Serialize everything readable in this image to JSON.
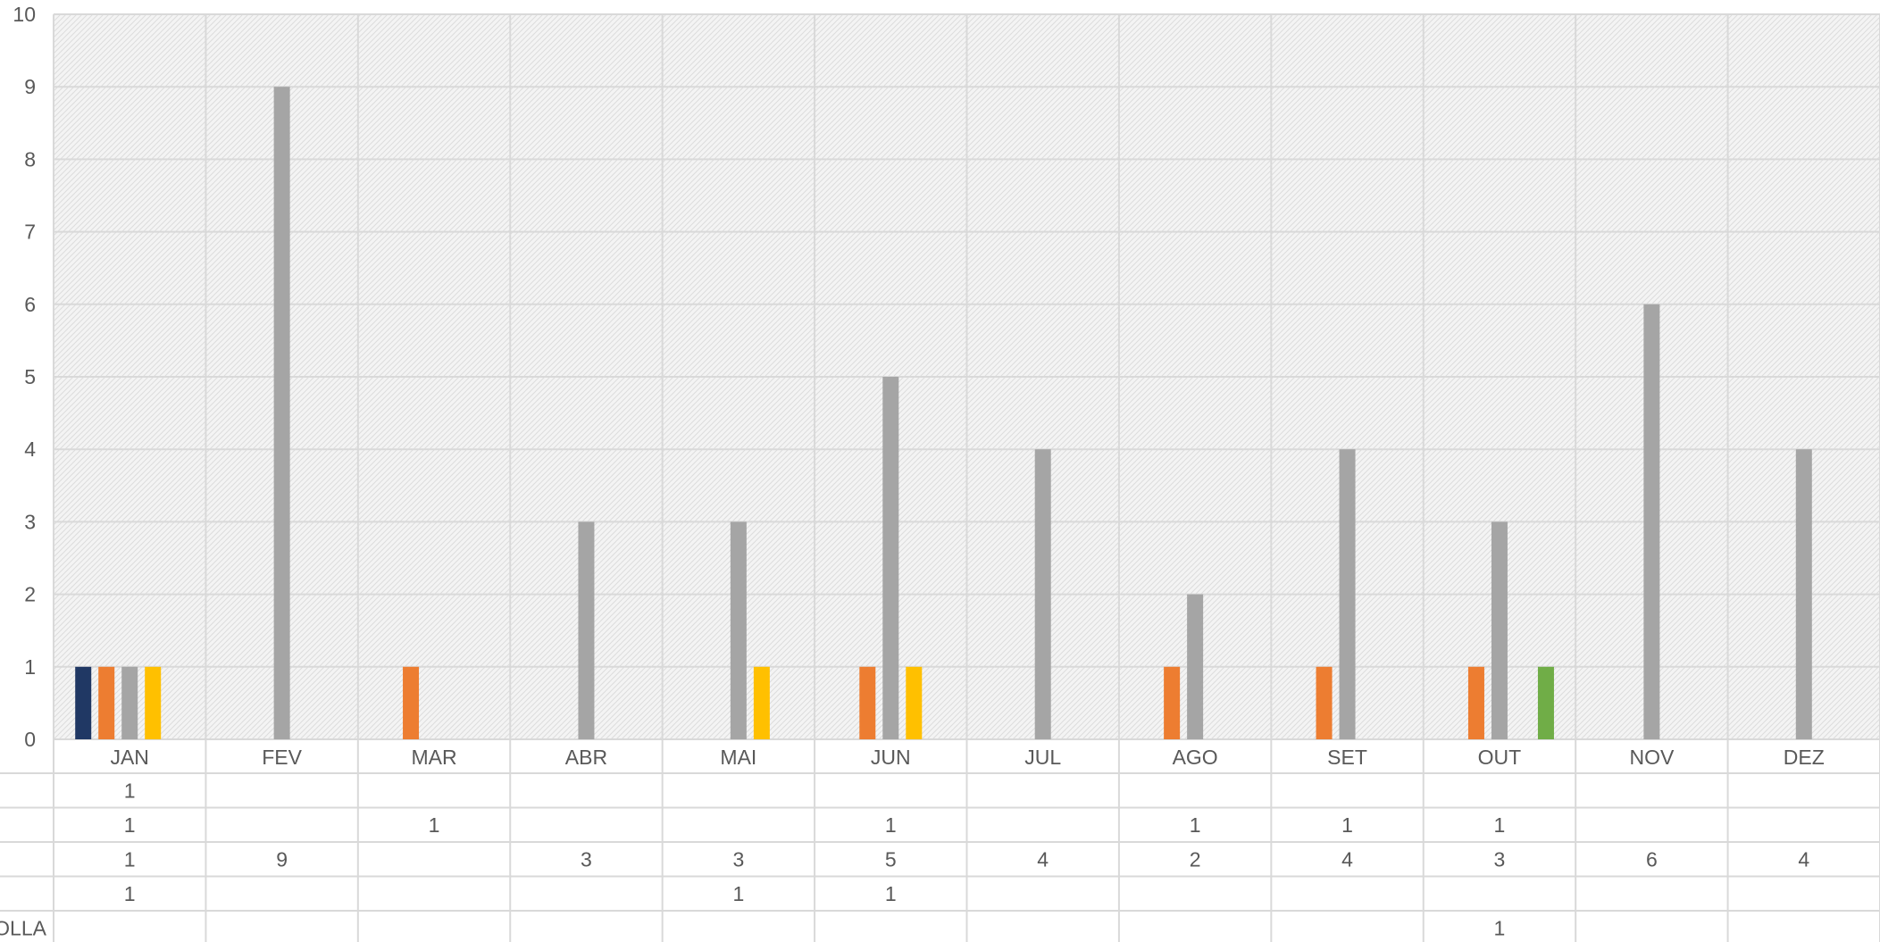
{
  "chart_data": {
    "type": "bar",
    "categories": [
      "JAN",
      "FEV",
      "MAR",
      "ABR",
      "MAI",
      "JUN",
      "JUL",
      "AGO",
      "SET",
      "OUT",
      "NOV",
      "DEZ"
    ],
    "ylim": [
      0,
      10
    ],
    "y_ticks": [
      "0",
      "1",
      "2",
      "3",
      "4",
      "5",
      "6",
      "7",
      "8",
      "9",
      "10"
    ],
    "grid": true,
    "legend": "data-table",
    "series": [
      {
        "name": "",
        "color": "#203864",
        "values": [
          1,
          null,
          null,
          null,
          null,
          null,
          null,
          null,
          null,
          null,
          null,
          null
        ]
      },
      {
        "name": "",
        "color": "#ED7D31",
        "values": [
          1,
          null,
          1,
          null,
          null,
          1,
          null,
          1,
          1,
          1,
          null,
          null
        ]
      },
      {
        "name": "",
        "color": "#A5A5A5",
        "values": [
          1,
          9,
          null,
          3,
          3,
          5,
          4,
          2,
          4,
          3,
          6,
          4
        ]
      },
      {
        "name": "",
        "color": "#FFC000",
        "values": [
          1,
          null,
          null,
          null,
          1,
          1,
          null,
          null,
          null,
          null,
          null,
          null
        ]
      },
      {
        "name": "OLLA",
        "color": "#70AD47",
        "values": [
          null,
          null,
          null,
          null,
          null,
          null,
          null,
          null,
          null,
          1,
          null,
          null
        ]
      }
    ]
  }
}
